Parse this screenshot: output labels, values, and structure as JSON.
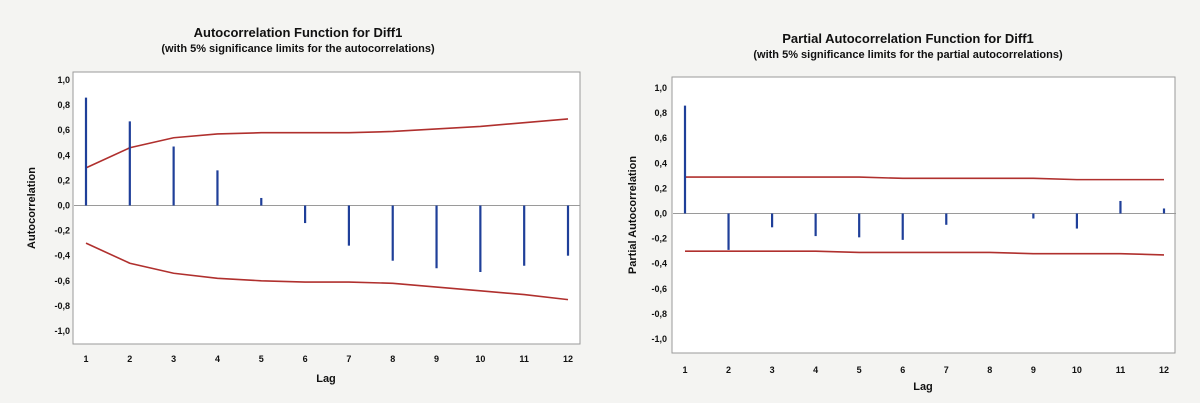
{
  "colors": {
    "bar": "#1f3f99",
    "limit": "#b0302e",
    "plot_bg": "#ffffff",
    "frame": "#9a9a9a"
  },
  "chart_data": [
    {
      "type": "bar",
      "title": "Autocorrelation Function for Diff1",
      "subtitle": "(with 5% significance limits for the autocorrelations)",
      "xlabel": "Lag",
      "ylabel": "Autocorrelation",
      "ylim": [
        -1.0,
        1.0
      ],
      "yticks": [
        "1,0",
        "0,8",
        "0,6",
        "0,4",
        "0,2",
        "0,0",
        "-0,2",
        "-0,4",
        "-0,6",
        "-0,8",
        "-1,0"
      ],
      "ytick_values": [
        1.0,
        0.8,
        0.6,
        0.4,
        0.2,
        0.0,
        -0.2,
        -0.4,
        -0.6,
        -0.8,
        -1.0
      ],
      "categories": [
        "1",
        "2",
        "3",
        "4",
        "5",
        "6",
        "7",
        "8",
        "9",
        "10",
        "11",
        "12"
      ],
      "values": [
        0.86,
        0.67,
        0.47,
        0.28,
        0.06,
        -0.14,
        -0.32,
        -0.44,
        -0.5,
        -0.53,
        -0.48,
        -0.4
      ],
      "upper_limit": [
        0.3,
        0.46,
        0.54,
        0.57,
        0.58,
        0.58,
        0.58,
        0.59,
        0.61,
        0.63,
        0.66,
        0.69
      ],
      "lower_limit": [
        -0.3,
        -0.46,
        -0.54,
        -0.58,
        -0.6,
        -0.61,
        -0.61,
        -0.62,
        -0.65,
        -0.68,
        -0.71,
        -0.75
      ]
    },
    {
      "type": "bar",
      "title": "Partial Autocorrelation Function for Diff1",
      "subtitle": "(with 5% significance limits for the partial autocorrelations)",
      "xlabel": "Lag",
      "ylabel": "Partial Autocorrelation",
      "ylim": [
        -1.0,
        1.0
      ],
      "yticks": [
        "1,0",
        "0,8",
        "0,6",
        "0,4",
        "0,2",
        "0,0",
        "-0,2",
        "-0,4",
        "-0,6",
        "-0,8",
        "-1,0"
      ],
      "ytick_values": [
        1.0,
        0.8,
        0.6,
        0.4,
        0.2,
        0.0,
        -0.2,
        -0.4,
        -0.6,
        -0.8,
        -1.0
      ],
      "categories": [
        "1",
        "2",
        "3",
        "4",
        "5",
        "6",
        "7",
        "8",
        "9",
        "10",
        "11",
        "12"
      ],
      "values": [
        0.86,
        -0.29,
        -0.11,
        -0.18,
        -0.19,
        -0.21,
        -0.09,
        0.0,
        -0.04,
        -0.12,
        0.1,
        0.04
      ],
      "upper_limit": [
        0.29,
        0.29,
        0.29,
        0.29,
        0.29,
        0.28,
        0.28,
        0.28,
        0.28,
        0.27,
        0.27,
        0.27
      ],
      "lower_limit": [
        -0.3,
        -0.3,
        -0.3,
        -0.3,
        -0.31,
        -0.31,
        -0.31,
        -0.31,
        -0.32,
        -0.32,
        -0.32,
        -0.33
      ]
    }
  ]
}
